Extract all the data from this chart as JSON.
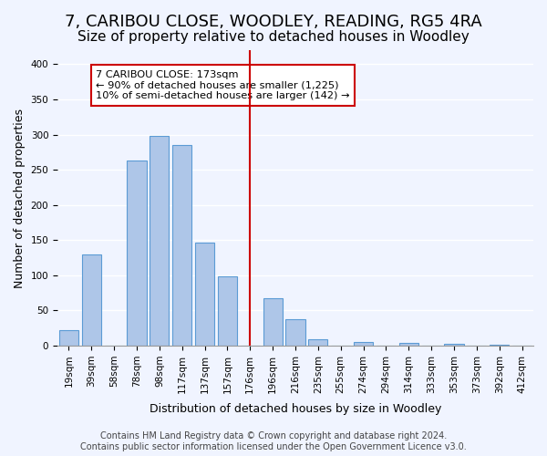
{
  "title": "7, CARIBOU CLOSE, WOODLEY, READING, RG5 4RA",
  "subtitle": "Size of property relative to detached houses in Woodley",
  "xlabel": "Distribution of detached houses by size in Woodley",
  "ylabel": "Number of detached properties",
  "bar_labels": [
    "19sqm",
    "39sqm",
    "58sqm",
    "78sqm",
    "98sqm",
    "117sqm",
    "137sqm",
    "157sqm",
    "176sqm",
    "196sqm",
    "216sqm",
    "235sqm",
    "255sqm",
    "274sqm",
    "294sqm",
    "314sqm",
    "333sqm",
    "353sqm",
    "373sqm",
    "392sqm",
    "412sqm"
  ],
  "bar_heights": [
    22,
    130,
    0,
    263,
    298,
    285,
    147,
    99,
    0,
    68,
    37,
    9,
    0,
    5,
    0,
    4,
    0,
    2,
    0,
    1,
    0
  ],
  "bar_color": "#aec6e8",
  "bar_edge_color": "#5b9bd5",
  "vline_x": 8,
  "vline_color": "#cc0000",
  "annotation_box_text": "7 CARIBOU CLOSE: 173sqm\n← 90% of detached houses are smaller (1,225)\n10% of semi-detached houses are larger (142) →",
  "annotation_box_color": "#cc0000",
  "annotation_box_bg": "#ffffff",
  "ylim": [
    0,
    420
  ],
  "yticks": [
    0,
    50,
    100,
    150,
    200,
    250,
    300,
    350,
    400
  ],
  "footer_text": "Contains HM Land Registry data © Crown copyright and database right 2024.\nContains public sector information licensed under the Open Government Licence v3.0.",
  "bg_color": "#f0f4ff",
  "grid_color": "#ffffff",
  "title_fontsize": 13,
  "subtitle_fontsize": 11,
  "label_fontsize": 9,
  "tick_fontsize": 7.5,
  "footer_fontsize": 7
}
